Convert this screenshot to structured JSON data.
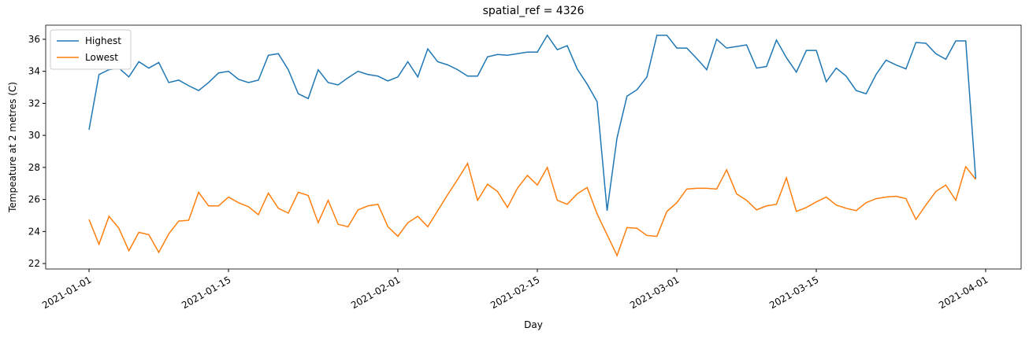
{
  "chart_data": {
    "type": "line",
    "title": "spatial_ref = 4326",
    "xlabel": "Day",
    "ylabel": "Tempeature at 2 metres (C)",
    "x": [
      "2021-01-01",
      "2021-01-02",
      "2021-01-03",
      "2021-01-04",
      "2021-01-05",
      "2021-01-06",
      "2021-01-07",
      "2021-01-08",
      "2021-01-09",
      "2021-01-10",
      "2021-01-11",
      "2021-01-12",
      "2021-01-13",
      "2021-01-14",
      "2021-01-15",
      "2021-01-16",
      "2021-01-17",
      "2021-01-18",
      "2021-01-19",
      "2021-01-20",
      "2021-01-21",
      "2021-01-22",
      "2021-01-23",
      "2021-01-24",
      "2021-01-25",
      "2021-01-26",
      "2021-01-27",
      "2021-01-28",
      "2021-01-29",
      "2021-01-30",
      "2021-01-31",
      "2021-02-01",
      "2021-02-02",
      "2021-02-03",
      "2021-02-04",
      "2021-02-05",
      "2021-02-06",
      "2021-02-07",
      "2021-02-08",
      "2021-02-09",
      "2021-02-10",
      "2021-02-11",
      "2021-02-12",
      "2021-02-13",
      "2021-02-14",
      "2021-02-15",
      "2021-02-16",
      "2021-02-17",
      "2021-02-18",
      "2021-02-19",
      "2021-02-20",
      "2021-02-21",
      "2021-02-22",
      "2021-02-23",
      "2021-02-24",
      "2021-02-25",
      "2021-02-26",
      "2021-02-27",
      "2021-02-28",
      "2021-03-01",
      "2021-03-02",
      "2021-03-03",
      "2021-03-04",
      "2021-03-05",
      "2021-03-06",
      "2021-03-07",
      "2021-03-08",
      "2021-03-09",
      "2021-03-10",
      "2021-03-11",
      "2021-03-12",
      "2021-03-13",
      "2021-03-14",
      "2021-03-15",
      "2021-03-16",
      "2021-03-17",
      "2021-03-18",
      "2021-03-19",
      "2021-03-20",
      "2021-03-21",
      "2021-03-22",
      "2021-03-23",
      "2021-03-24",
      "2021-03-25",
      "2021-03-26",
      "2021-03-27",
      "2021-03-28",
      "2021-03-29",
      "2021-03-30",
      "2021-03-31"
    ],
    "series": [
      {
        "name": "Highest",
        "color": "#1f77b4",
        "values": [
          30.35,
          33.8,
          34.1,
          34.2,
          33.65,
          34.6,
          34.2,
          34.55,
          33.3,
          33.45,
          33.1,
          32.8,
          33.3,
          33.9,
          34.0,
          33.5,
          33.3,
          33.45,
          35.0,
          35.1,
          34.1,
          32.6,
          32.3,
          34.1,
          33.3,
          33.15,
          33.6,
          34.0,
          33.8,
          33.7,
          33.4,
          33.65,
          34.6,
          33.65,
          35.4,
          34.6,
          34.4,
          34.1,
          33.7,
          33.7,
          34.9,
          35.05,
          35.0,
          35.1,
          35.2,
          35.2,
          36.25,
          35.35,
          35.6,
          34.15,
          33.2,
          32.1,
          25.3,
          29.85,
          32.45,
          32.85,
          33.65,
          36.25,
          36.25,
          35.45,
          35.45,
          34.8,
          34.1,
          36.0,
          35.45,
          35.55,
          35.65,
          34.2,
          34.3,
          35.95,
          34.85,
          33.95,
          35.3,
          35.3,
          33.35,
          34.2,
          33.7,
          32.8,
          32.6,
          33.8,
          34.7,
          34.4,
          34.15,
          35.8,
          35.75,
          35.1,
          34.75,
          35.9,
          35.9,
          27.3
        ]
      },
      {
        "name": "Lowest",
        "color": "#ff7f0e",
        "values": [
          24.75,
          23.2,
          24.95,
          24.2,
          22.8,
          23.95,
          23.8,
          22.7,
          23.85,
          24.65,
          24.7,
          26.45,
          25.6,
          25.6,
          26.15,
          25.8,
          25.55,
          25.05,
          26.4,
          25.45,
          25.15,
          26.45,
          26.25,
          24.55,
          25.95,
          24.45,
          24.3,
          25.35,
          25.6,
          25.7,
          24.3,
          23.7,
          24.55,
          24.95,
          24.3,
          25.3,
          26.3,
          27.25,
          28.25,
          25.95,
          26.95,
          26.5,
          25.5,
          26.7,
          27.5,
          26.9,
          28.0,
          25.95,
          25.7,
          26.35,
          26.75,
          25.1,
          23.8,
          22.5,
          24.25,
          24.2,
          23.75,
          23.7,
          25.25,
          25.8,
          26.65,
          26.7,
          26.7,
          26.65,
          27.85,
          26.35,
          25.95,
          25.35,
          25.6,
          25.7,
          27.35,
          25.25,
          25.5,
          25.85,
          26.15,
          25.65,
          25.45,
          25.3,
          25.8,
          26.05,
          26.15,
          26.2,
          26.05,
          24.75,
          25.65,
          26.5,
          26.9,
          25.95,
          28.05,
          27.25
        ]
      }
    ],
    "xlim": [
      "2020-12-27T15:36:00Z",
      "2021-04-04T13:26:00Z"
    ],
    "xticks": [
      "2021-01-01",
      "2021-01-15",
      "2021-02-01",
      "2021-02-15",
      "2021-03-01",
      "2021-03-15",
      "2021-04-01"
    ],
    "ylim": [
      21.66,
      36.88
    ],
    "yticks": [
      22,
      24,
      26,
      28,
      30,
      32,
      34,
      36
    ],
    "legend": "upper left",
    "grid": false
  }
}
